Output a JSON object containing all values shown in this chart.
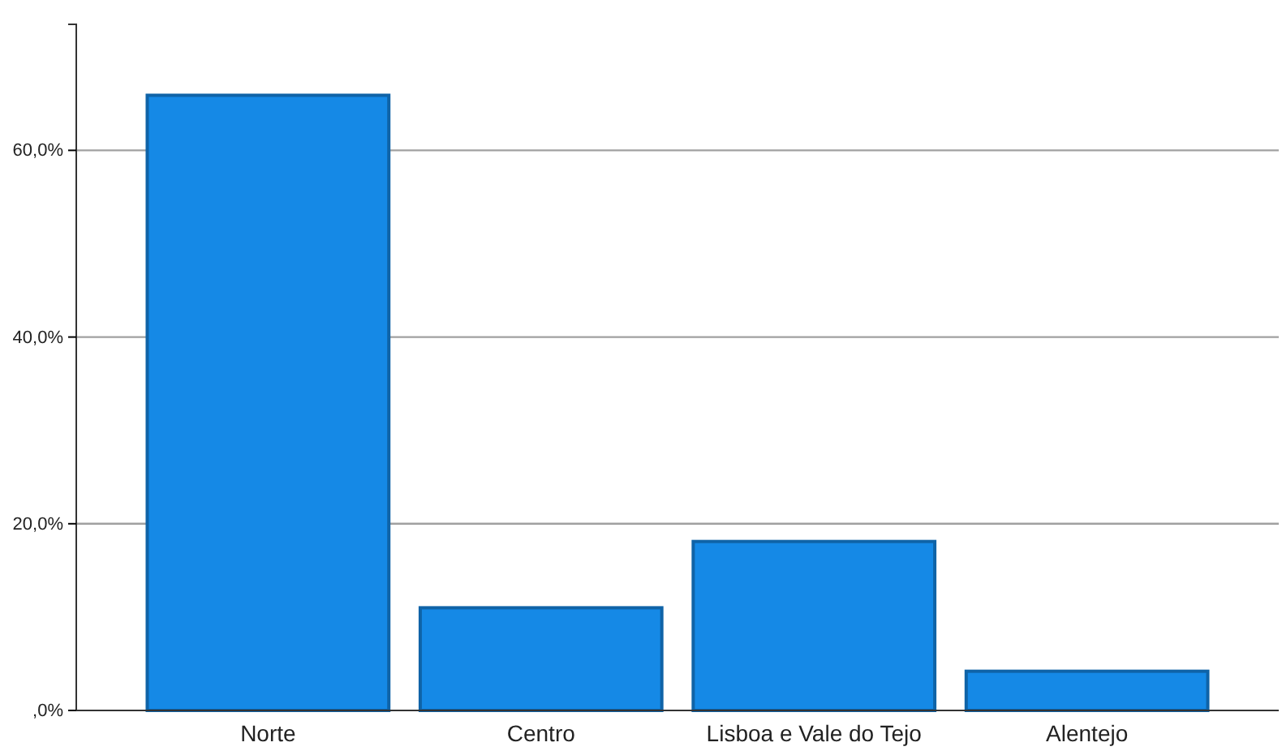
{
  "chart_data": {
    "type": "bar",
    "categories": [
      "Norte",
      "Centro",
      "Lisboa e Vale do Tejo",
      "Alentejo"
    ],
    "values": [
      65.9,
      11.0,
      18.1,
      4.2
    ],
    "color": "#1589e6",
    "ylim": [
      0,
      73.5
    ],
    "yticks": [
      {
        "value": 0,
        "label": ",0%"
      },
      {
        "value": 20,
        "label": "20,0%"
      },
      {
        "value": 40,
        "label": "40,0%"
      },
      {
        "value": 60,
        "label": "60,0%"
      }
    ],
    "grid": "y"
  }
}
